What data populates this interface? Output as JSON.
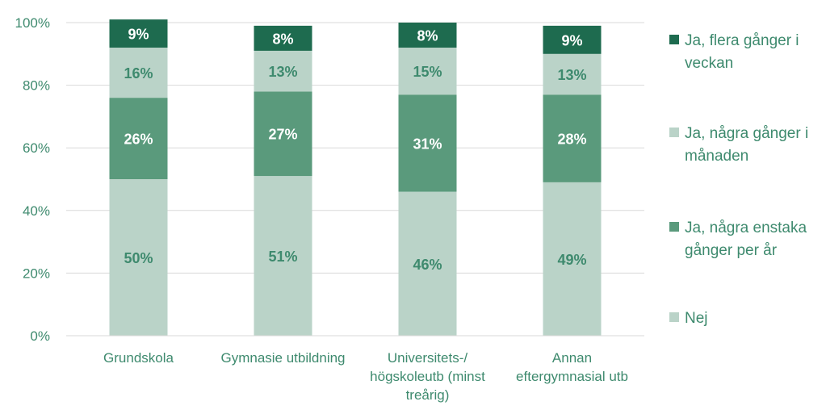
{
  "chart_data": {
    "type": "bar",
    "stacked": true,
    "categories": [
      "Grundskola",
      "Gymnasie utbildning",
      "Universitets-/ högskoleutb (minst treårig)",
      "Annan eftergymnasial utb"
    ],
    "category_lines": [
      [
        "Grundskola"
      ],
      [
        "Gymnasie utbildning"
      ],
      [
        "Universitets-/",
        "högskoleutb (minst",
        "treårig)"
      ],
      [
        "Annan",
        "eftergymnasial utb"
      ]
    ],
    "series": [
      {
        "name": "Nej",
        "values": [
          50,
          51,
          46,
          49
        ],
        "color": "#bad3c8",
        "label_color": "#3e8a6e",
        "legend_lines": [
          "Nej"
        ]
      },
      {
        "name": "Ja, några enstaka gånger per år",
        "values": [
          26,
          27,
          31,
          28
        ],
        "color": "#5a9a7c",
        "label_color": "#ffffff",
        "legend_lines": [
          "Ja, några enstaka",
          "gånger per år"
        ]
      },
      {
        "name": "Ja, några gånger i månaden",
        "values": [
          16,
          13,
          15,
          13
        ],
        "color": "#bad3c8",
        "label_color": "#3e8a6e",
        "legend_lines": [
          "Ja, några gånger i",
          "månaden"
        ]
      },
      {
        "name": "Ja, flera gånger i veckan",
        "values": [
          9,
          8,
          8,
          9
        ],
        "color": "#1e6b4f",
        "label_color": "#ffffff",
        "legend_lines": [
          "Ja, flera gånger i",
          "veckan"
        ]
      }
    ],
    "value_suffix": "%",
    "ylim": [
      0,
      100
    ],
    "yticks": [
      "0%",
      "20%",
      "40%",
      "60%",
      "80%",
      "100%"
    ],
    "grid": true,
    "legend_position": "right"
  }
}
